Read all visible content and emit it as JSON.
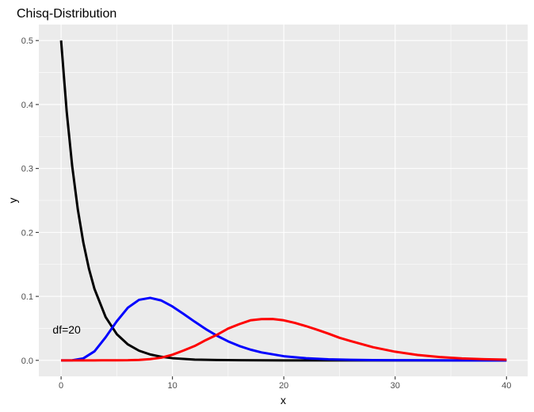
{
  "chart_data": {
    "type": "line",
    "title": "Chisq-Distribution",
    "xlabel": "x",
    "ylabel": "y",
    "xlim": [
      -2,
      41.9
    ],
    "ylim": [
      -0.025,
      0.525
    ],
    "x_ticks": [
      0,
      10,
      20,
      30,
      40
    ],
    "y_ticks": [
      0.0,
      0.1,
      0.2,
      0.3,
      0.4,
      0.5
    ],
    "x_tick_labels": [
      "0",
      "10",
      "20",
      "30",
      "40"
    ],
    "y_tick_labels": [
      "0.0",
      "0.1",
      "0.2",
      "0.3",
      "0.4",
      "0.5"
    ],
    "grid": true,
    "panel_color": "#ebebeb",
    "series": [
      {
        "color": "#000000",
        "x": [
          0,
          0.5,
          1,
          1.5,
          2,
          2.5,
          3,
          4,
          5,
          6,
          7,
          8,
          9,
          10,
          12,
          14,
          16,
          18,
          20,
          25,
          30,
          35,
          40
        ],
        "y": [
          0.5,
          0.3894,
          0.3033,
          0.2362,
          0.1839,
          0.1433,
          0.1116,
          0.0677,
          0.041,
          0.0249,
          0.0151,
          0.0092,
          0.0056,
          0.0034,
          0.0012,
          0.0005,
          0.0002,
          0.0001,
          0.0,
          0.0,
          0.0,
          0.0,
          0.0
        ]
      },
      {
        "color": "#0000ff",
        "x": [
          0,
          1,
          2,
          3,
          4,
          5,
          6,
          7,
          8,
          9,
          10,
          11,
          12,
          13,
          14,
          15,
          16,
          17,
          18,
          20,
          22,
          24,
          26,
          28,
          30,
          35,
          40
        ],
        "y": [
          0,
          0.0001,
          0.0031,
          0.0141,
          0.0361,
          0.0611,
          0.0824,
          0.0946,
          0.0977,
          0.0936,
          0.0842,
          0.0726,
          0.0604,
          0.0488,
          0.0385,
          0.0297,
          0.0225,
          0.0168,
          0.0124,
          0.0065,
          0.0033,
          0.0016,
          0.0008,
          0.0004,
          0.0002,
          0.0,
          0.0
        ]
      },
      {
        "color": "#ff0000",
        "x": [
          0,
          3,
          5,
          6,
          7,
          8,
          9,
          10,
          11,
          12,
          13,
          14,
          15,
          16,
          17,
          18,
          19,
          20,
          21,
          22,
          23,
          24,
          25,
          26,
          28,
          30,
          32,
          34,
          36,
          38,
          40
        ],
        "y": [
          0,
          0.0,
          0.0001,
          0.0002,
          0.0007,
          0.0019,
          0.0042,
          0.0088,
          0.0154,
          0.0225,
          0.0317,
          0.04,
          0.0497,
          0.0566,
          0.0626,
          0.0645,
          0.0646,
          0.0626,
          0.0585,
          0.0535,
          0.0478,
          0.0418,
          0.0353,
          0.0302,
          0.0206,
          0.0135,
          0.0085,
          0.0052,
          0.0031,
          0.0018,
          0.001
        ]
      }
    ],
    "annotations": [
      {
        "text": "df=20",
        "x": 0.5,
        "y": 0.048
      }
    ]
  }
}
